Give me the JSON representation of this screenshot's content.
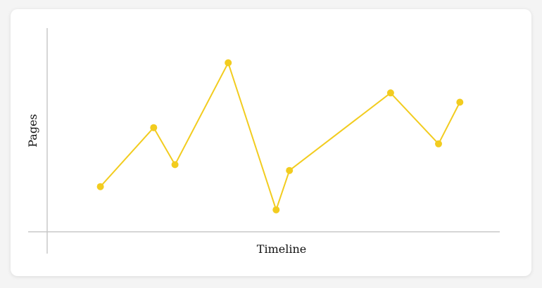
{
  "chart_data": {
    "type": "line",
    "title": "",
    "xlabel": "Timeline",
    "ylabel": "Pages",
    "grid": false,
    "x": [
      1,
      2,
      2.4,
      3.4,
      4.3,
      4.55,
      6.45,
      7.35,
      7.75
    ],
    "series": [
      {
        "values": [
          19.5,
          45,
          29,
          73,
          9.5,
          26.5,
          60,
          38,
          56
        ]
      }
    ],
    "xlim": [
      0,
      8.5
    ],
    "ylim": [
      0,
      88
    ],
    "colors": {
      "line": "#f2cc1f",
      "axis": "#c8c8c8"
    }
  }
}
